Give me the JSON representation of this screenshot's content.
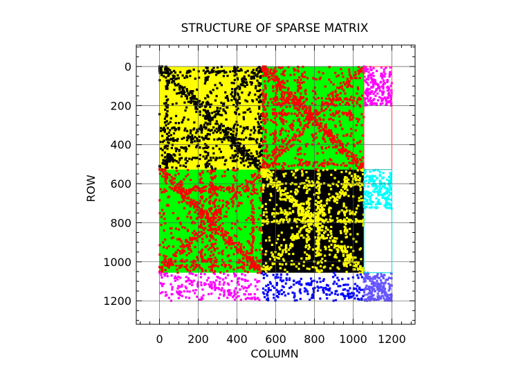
{
  "chart_data": {
    "type": "scatter",
    "title": "STRUCTURE OF SPARSE MATRIX",
    "xlabel": "COLUMN",
    "ylabel": "ROW",
    "xlim": [
      -120,
      1320
    ],
    "ylim": [
      1320,
      -110
    ],
    "y_inverted": true,
    "xticks": [
      0,
      200,
      400,
      600,
      800,
      1000,
      1200
    ],
    "yticks": [
      0,
      200,
      400,
      600,
      800,
      1000,
      1200
    ],
    "grid": true,
    "legend": "none",
    "block_boundaries": [
      0,
      528,
      1056,
      1200
    ],
    "blocks": [
      {
        "rows": [
          0,
          528
        ],
        "cols": [
          0,
          528
        ],
        "fill": "#ffff00",
        "marker": "#000000",
        "pattern": "dense-diagonal"
      },
      {
        "rows": [
          0,
          528
        ],
        "cols": [
          528,
          1056
        ],
        "fill": "#00ff00",
        "marker": "#ff0000",
        "pattern": "dense-diagonal"
      },
      {
        "rows": [
          0,
          200
        ],
        "cols": [
          1056,
          1200
        ],
        "fill": "none",
        "marker": "#ff00ff",
        "pattern": "sparse"
      },
      {
        "rows": [
          528,
          1056
        ],
        "cols": [
          0,
          528
        ],
        "fill": "#00ff00",
        "marker": "#ff0000",
        "pattern": "dense-diagonal"
      },
      {
        "rows": [
          528,
          1056
        ],
        "cols": [
          528,
          1056
        ],
        "fill": "#000000",
        "marker": "#ffff00",
        "pattern": "dense-diagonal"
      },
      {
        "rows": [
          528,
          728
        ],
        "cols": [
          1056,
          1200
        ],
        "fill": "none",
        "marker": "#00ffff",
        "pattern": "sparse"
      },
      {
        "rows": [
          1056,
          1200
        ],
        "cols": [
          0,
          528
        ],
        "fill": "none",
        "marker": "#ff00ff",
        "pattern": "sparse"
      },
      {
        "rows": [
          1056,
          1200
        ],
        "cols": [
          528,
          1056
        ],
        "fill": "none",
        "marker": "#0000ff",
        "pattern": "sparse"
      },
      {
        "rows": [
          1056,
          1200
        ],
        "cols": [
          1056,
          1200
        ],
        "fill": "none",
        "marker": "#6655ff",
        "pattern": "sparse"
      }
    ],
    "outline_boxes": [
      {
        "rows": [
          0,
          528
        ],
        "cols": [
          1056,
          1200
        ],
        "color": "#ff4444"
      },
      {
        "rows": [
          528,
          1056
        ],
        "cols": [
          1056,
          1200
        ],
        "color": "#00dddd"
      }
    ]
  }
}
